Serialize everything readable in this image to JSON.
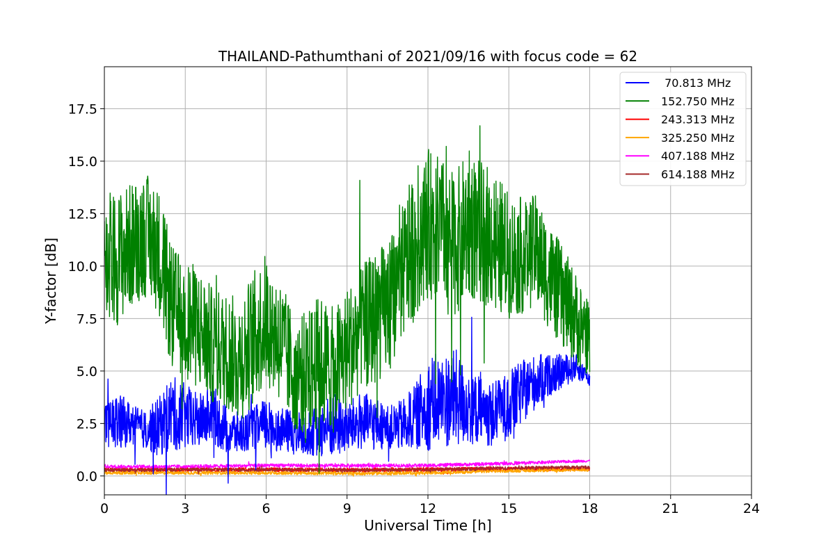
{
  "chart_data": {
    "type": "line",
    "title": "THAILAND-Pathumthani of 2021/09/16 with focus code = 62",
    "xlabel": "Universal Time [h]",
    "ylabel": "Y-factor [dB]",
    "xlim": [
      0,
      24
    ],
    "ylim": [
      -0.9,
      19.5
    ],
    "xticks": [
      0,
      3,
      6,
      9,
      12,
      15,
      18,
      21,
      24
    ],
    "xtick_labels": [
      "0",
      "3",
      "6",
      "9",
      "12",
      "15",
      "18",
      "21",
      "24"
    ],
    "yticks": [
      0,
      2.5,
      5,
      7.5,
      10,
      12.5,
      15,
      17.5
    ],
    "ytick_labels": [
      "0.0",
      "2.5",
      "5.0",
      "7.5",
      "10.0",
      "12.5",
      "15.0",
      "17.5"
    ],
    "grid": true,
    "legend_position": "top-right",
    "series": [
      {
        "name": " 70.813 MHz",
        "color": "#0000ff",
        "x": [
          0,
          0.5,
          1,
          1.5,
          2,
          2.5,
          3,
          3.5,
          4,
          4.5,
          5,
          5.5,
          6,
          6.5,
          7,
          7.5,
          8,
          8.5,
          9,
          9.5,
          10,
          10.5,
          11,
          11.5,
          12,
          12.5,
          13,
          13.5,
          14,
          14.5,
          15,
          15.5,
          16,
          16.5,
          17,
          17.5,
          18
        ],
        "y": [
          2.4,
          2.6,
          2.5,
          2.2,
          2.3,
          3.0,
          2.8,
          2.6,
          3.0,
          2.2,
          2.0,
          2.3,
          2.4,
          2.2,
          2.1,
          2.0,
          2.2,
          2.4,
          2.3,
          2.6,
          2.5,
          2.3,
          2.4,
          2.8,
          3.4,
          3.6,
          3.7,
          3.3,
          3.1,
          2.9,
          3.4,
          4.0,
          4.5,
          4.8,
          5.0,
          5.2,
          4.6
        ],
        "spread": [
          1.0,
          1.4,
          1.0,
          0.9,
          1.4,
          1.8,
          1.6,
          1.3,
          1.4,
          1.2,
          1.0,
          1.0,
          1.3,
          1.0,
          1.1,
          1.0,
          1.3,
          1.6,
          1.2,
          1.4,
          1.3,
          1.0,
          1.2,
          1.5,
          2.2,
          2.2,
          2.4,
          1.8,
          1.6,
          1.6,
          1.6,
          1.5,
          1.3,
          1.0,
          0.8,
          0.6,
          0.3
        ]
      },
      {
        "name": "152.750 MHz",
        "color": "#008000",
        "x": [
          0,
          0.5,
          1,
          1.5,
          2,
          2.5,
          3,
          3.5,
          4,
          4.5,
          5,
          5.5,
          6,
          6.5,
          7,
          7.5,
          8,
          8.5,
          9,
          9.5,
          10,
          10.5,
          11,
          11.5,
          12,
          12.5,
          13,
          13.5,
          14,
          14.5,
          15,
          15.5,
          16,
          16.5,
          17,
          17.5,
          18
        ],
        "y": [
          10.0,
          10.4,
          11.0,
          11.5,
          10.8,
          8.0,
          7.5,
          7.0,
          6.2,
          6.0,
          5.5,
          6.5,
          7.5,
          6.5,
          5.0,
          4.8,
          5.5,
          5.0,
          6.0,
          7.0,
          7.5,
          8.0,
          9.5,
          11.0,
          12.0,
          11.8,
          11.0,
          12.0,
          11.6,
          11.2,
          10.5,
          10.5,
          10.8,
          9.5,
          8.5,
          7.5,
          6.5
        ],
        "spread": [
          3.0,
          3.2,
          3.0,
          3.0,
          3.0,
          3.0,
          2.8,
          3.0,
          2.8,
          2.8,
          3.0,
          3.2,
          3.2,
          3.0,
          2.8,
          3.0,
          3.2,
          3.0,
          3.0,
          3.0,
          3.2,
          3.2,
          3.2,
          3.6,
          3.6,
          3.4,
          3.4,
          3.6,
          3.4,
          3.4,
          3.0,
          2.8,
          2.6,
          2.6,
          2.4,
          2.2,
          1.8
        ]
      },
      {
        "name": "243.313 MHz",
        "color": "#ff0000",
        "x": [
          0,
          3,
          6,
          9,
          12,
          15,
          18
        ],
        "y": [
          0.3,
          0.3,
          0.3,
          0.28,
          0.3,
          0.32,
          0.35
        ],
        "spread": [
          0.1,
          0.1,
          0.1,
          0.1,
          0.1,
          0.1,
          0.1
        ]
      },
      {
        "name": "325.250 MHz",
        "color": "#ffa500",
        "x": [
          0,
          3,
          6,
          9,
          12,
          15,
          18
        ],
        "y": [
          0.15,
          0.15,
          0.15,
          0.12,
          0.15,
          0.25,
          0.3
        ],
        "spread": [
          0.08,
          0.08,
          0.08,
          0.08,
          0.08,
          0.08,
          0.08
        ]
      },
      {
        "name": "407.188 MHz",
        "color": "#ff00ff",
        "x": [
          0,
          3,
          6,
          9,
          12,
          15,
          18
        ],
        "y": [
          0.45,
          0.45,
          0.5,
          0.5,
          0.5,
          0.6,
          0.72
        ],
        "spread": [
          0.08,
          0.08,
          0.08,
          0.08,
          0.08,
          0.08,
          0.06
        ]
      },
      {
        "name": "614.188 MHz",
        "color": "#a52a2a",
        "x": [
          0,
          3,
          6,
          9,
          12,
          15,
          18
        ],
        "y": [
          0.28,
          0.3,
          0.3,
          0.28,
          0.3,
          0.38,
          0.42
        ],
        "spread": [
          0.08,
          0.08,
          0.08,
          0.08,
          0.08,
          0.08,
          0.08
        ]
      }
    ]
  }
}
